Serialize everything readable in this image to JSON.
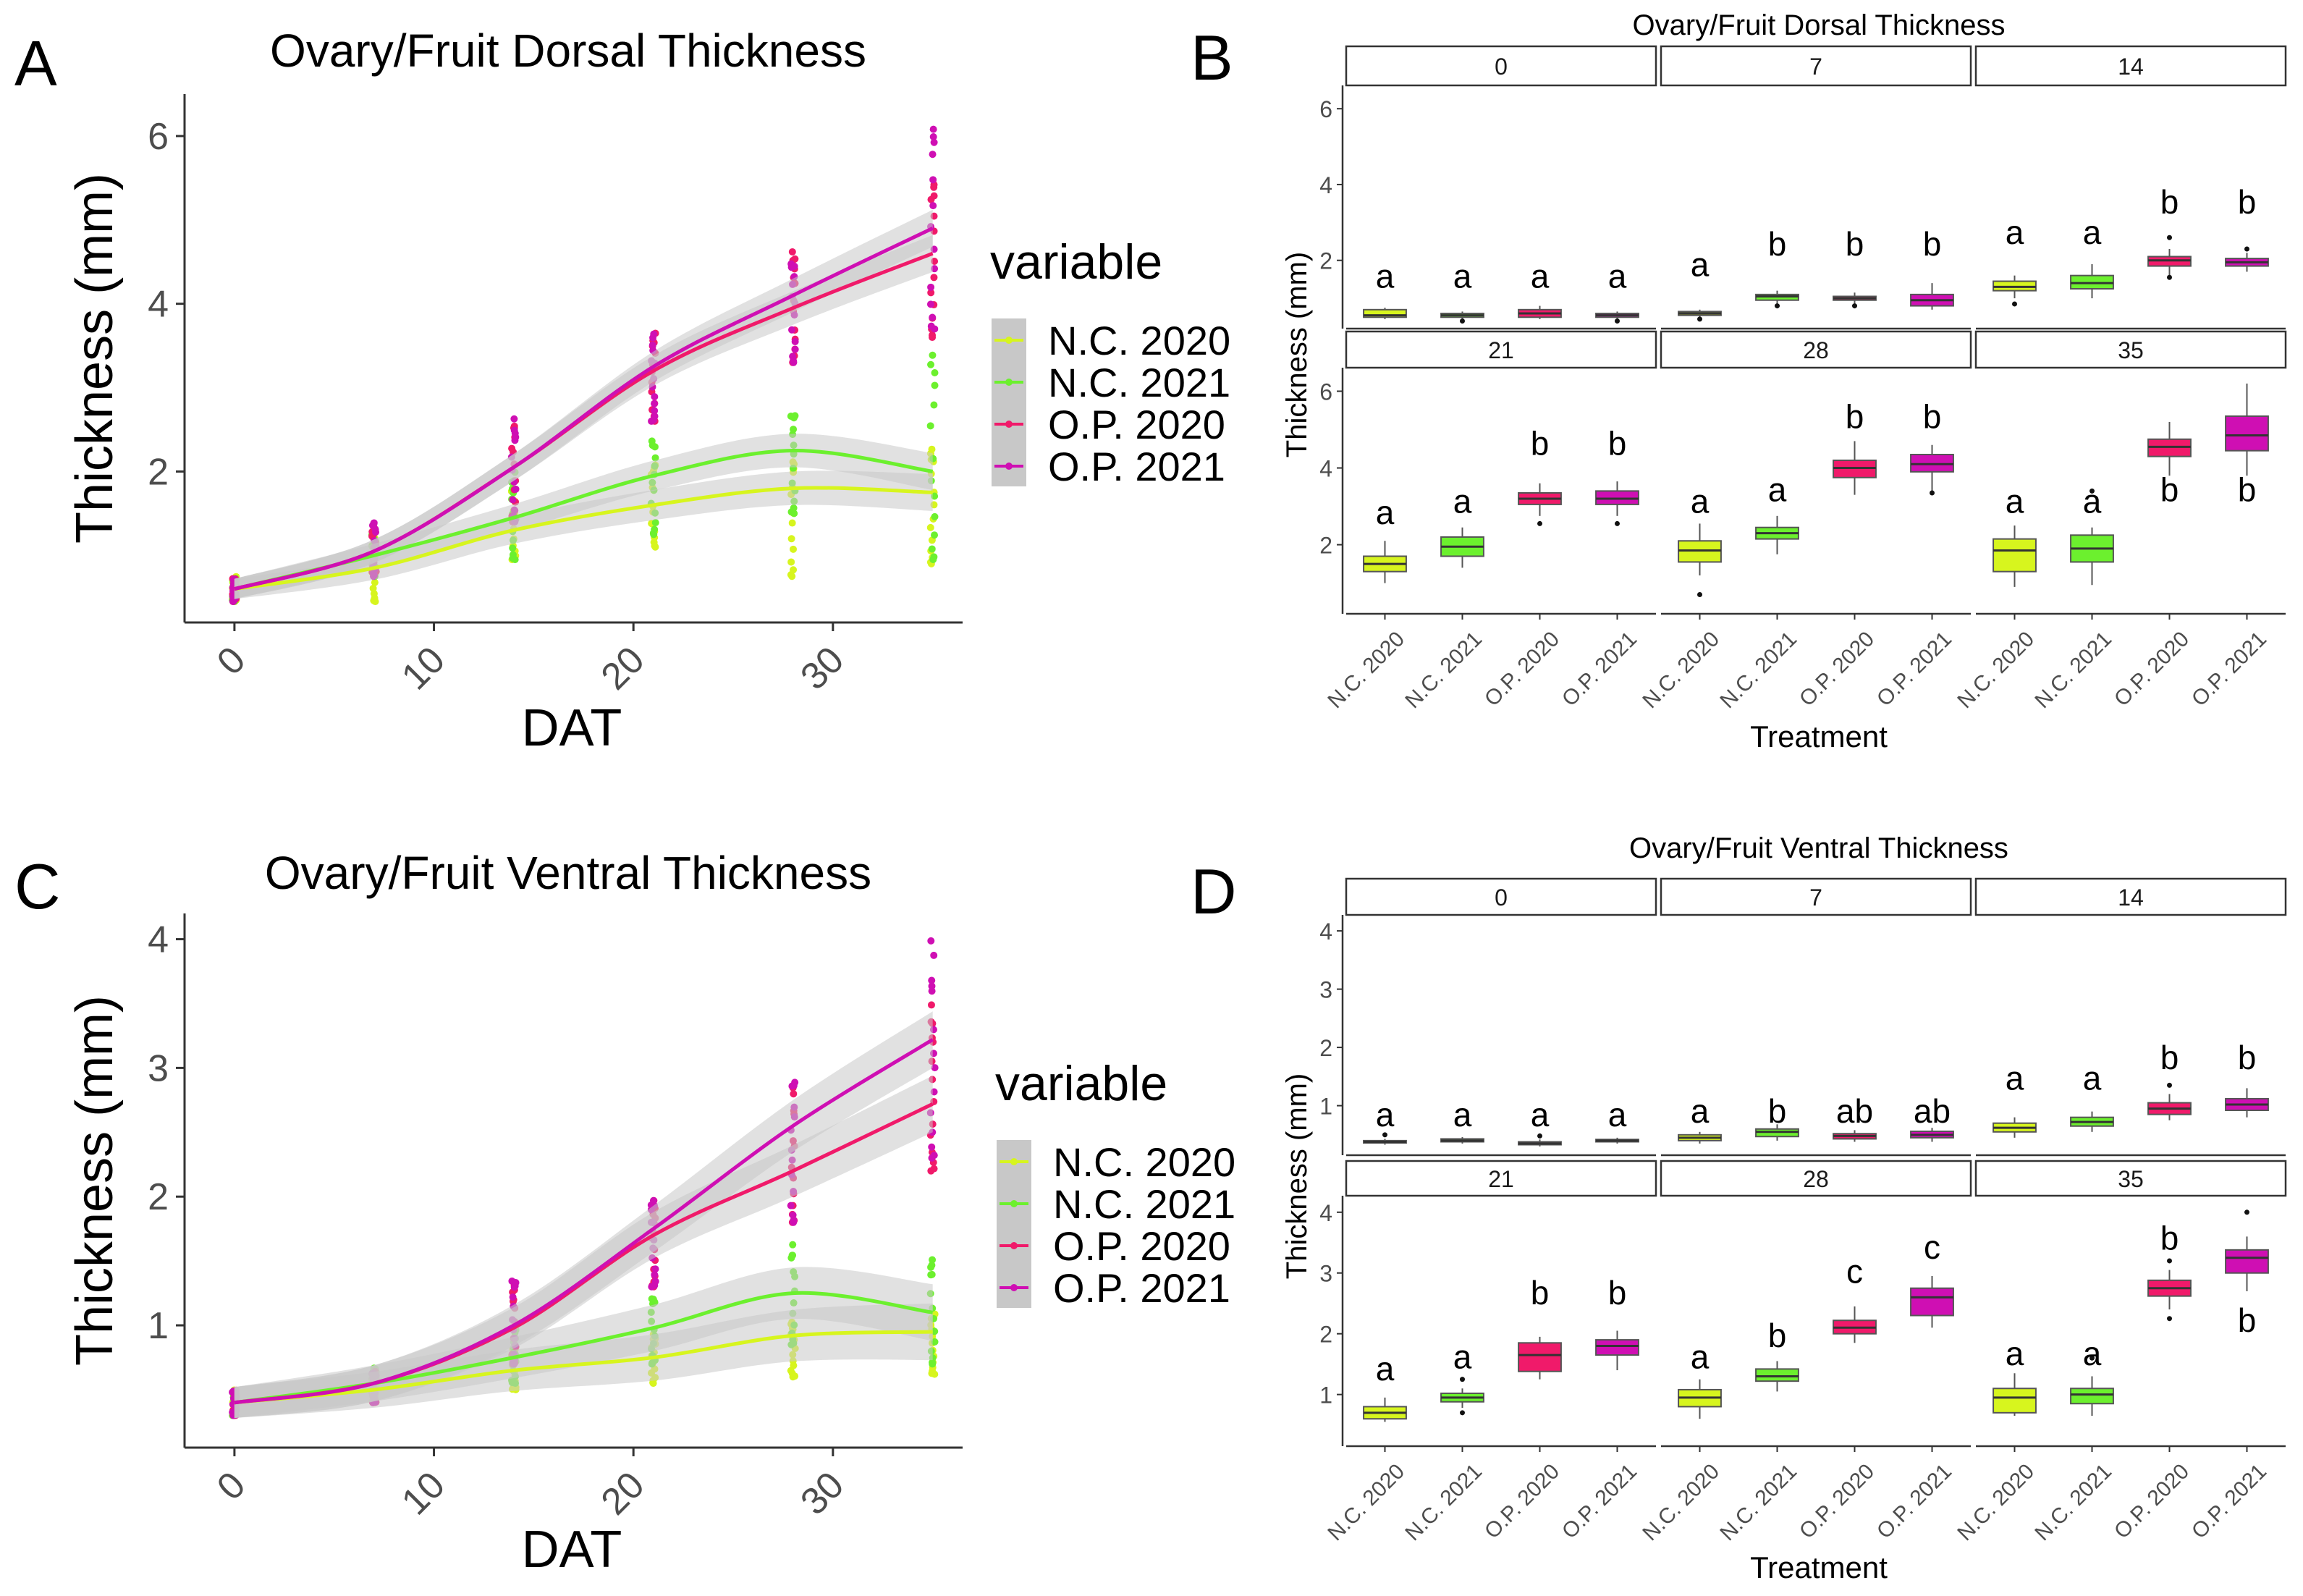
{
  "colors": {
    "N.C. 2020": "#d7f51e",
    "N.C. 2021": "#6cf02e",
    "O.P. 2020": "#f01a6a",
    "O.P. 2021": "#cf0fb3",
    "band": "#c8c8c8",
    "box_outline": "#555555"
  },
  "panel_letters": [
    "A",
    "B",
    "C",
    "D"
  ],
  "chart_data": [
    {
      "panel": "A",
      "type": "line",
      "title": "Ovary/Fruit Dorsal Thickness",
      "xlabel": "DAT",
      "ylabel": "Thickness (mm)",
      "xlim": [
        -2.5,
        36.5
      ],
      "ylim": [
        0.2,
        6.5
      ],
      "xticks": [
        0,
        10,
        20,
        30
      ],
      "yticks": [
        2,
        4,
        6
      ],
      "legend_title": "variable",
      "legend_position": "right",
      "x": [
        0,
        7,
        14,
        21,
        28,
        35
      ],
      "series": [
        {
          "name": "N.C. 2020",
          "values": [
            0.6,
            0.85,
            1.3,
            1.6,
            1.8,
            1.75
          ]
        },
        {
          "name": "N.C. 2021",
          "values": [
            0.6,
            1.0,
            1.45,
            1.95,
            2.25,
            2.0
          ]
        },
        {
          "name": "O.P. 2020",
          "values": [
            0.6,
            1.05,
            2.05,
            3.2,
            3.95,
            4.6
          ]
        },
        {
          "name": "O.P. 2021",
          "values": [
            0.6,
            1.05,
            2.05,
            3.25,
            4.1,
            4.9
          ]
        }
      ],
      "points": [
        {
          "name": "N.C. 2020",
          "min": [
            0.45,
            0.45,
            0.95,
            1.1,
            0.75,
            0.9
          ],
          "max": [
            0.75,
            1.25,
            1.8,
            2.1,
            2.3,
            2.3
          ]
        },
        {
          "name": "N.C. 2021",
          "min": [
            0.45,
            0.75,
            0.95,
            1.25,
            1.5,
            0.95
          ],
          "max": [
            0.75,
            1.25,
            2.05,
            2.45,
            2.8,
            3.4
          ]
        },
        {
          "name": "O.P. 2020",
          "min": [
            0.45,
            0.8,
            1.4,
            2.6,
            3.3,
            3.6
          ],
          "max": [
            0.75,
            1.35,
            2.65,
            3.7,
            4.7,
            5.5
          ]
        },
        {
          "name": "O.P. 2021",
          "min": [
            0.45,
            0.75,
            1.4,
            2.6,
            3.3,
            3.7
          ],
          "max": [
            0.75,
            1.45,
            2.65,
            3.65,
            4.6,
            6.2
          ]
        }
      ]
    },
    {
      "panel": "B",
      "type": "box",
      "title": "Ovary/Fruit Dorsal Thickness",
      "xlabel": "Treatment",
      "ylabel": "Thickness (mm)",
      "ylim": [
        0.2,
        6.5
      ],
      "yticks": [
        2,
        4,
        6
      ],
      "categories": [
        "N.C. 2020",
        "N.C. 2021",
        "O.P. 2020",
        "O.P. 2021"
      ],
      "facets": [
        {
          "label": "0",
          "boxes": [
            {
              "min": 0.45,
              "q1": 0.5,
              "median": 0.55,
              "q3": 0.7,
              "max": 0.75,
              "out": [],
              "letter": "a",
              "letter_y": 1.55
            },
            {
              "min": 0.45,
              "q1": 0.5,
              "median": 0.55,
              "q3": 0.6,
              "max": 0.65,
              "out": [
                0.4
              ],
              "letter": "a",
              "letter_y": 1.55
            },
            {
              "min": 0.45,
              "q1": 0.5,
              "median": 0.6,
              "q3": 0.7,
              "max": 0.8,
              "out": [],
              "letter": "a",
              "letter_y": 1.55
            },
            {
              "min": 0.45,
              "q1": 0.5,
              "median": 0.55,
              "q3": 0.6,
              "max": 0.65,
              "out": [
                0.4
              ],
              "letter": "a",
              "letter_y": 1.55
            }
          ]
        },
        {
          "label": "7",
          "boxes": [
            {
              "min": 0.45,
              "q1": 0.55,
              "median": 0.6,
              "q3": 0.65,
              "max": 0.7,
              "out": [
                0.45
              ],
              "letter": "a",
              "letter_y": 1.85
            },
            {
              "min": 0.85,
              "q1": 0.95,
              "median": 1.05,
              "q3": 1.1,
              "max": 1.2,
              "out": [
                0.8
              ],
              "letter": "b",
              "letter_y": 2.4
            },
            {
              "min": 0.85,
              "q1": 0.95,
              "median": 1.0,
              "q3": 1.05,
              "max": 1.15,
              "out": [
                0.8
              ],
              "letter": "b",
              "letter_y": 2.4
            },
            {
              "min": 0.7,
              "q1": 0.8,
              "median": 0.95,
              "q3": 1.1,
              "max": 1.4,
              "out": [],
              "letter": "b",
              "letter_y": 2.4
            }
          ]
        },
        {
          "label": "14",
          "boxes": [
            {
              "min": 1.0,
              "q1": 1.2,
              "median": 1.3,
              "q3": 1.45,
              "max": 1.6,
              "out": [
                0.85
              ],
              "letter": "a",
              "letter_y": 2.7
            },
            {
              "min": 1.0,
              "q1": 1.25,
              "median": 1.4,
              "q3": 1.6,
              "max": 1.9,
              "out": [],
              "letter": "a",
              "letter_y": 2.7
            },
            {
              "min": 1.6,
              "q1": 1.85,
              "median": 2.0,
              "q3": 2.1,
              "max": 2.3,
              "out": [
                1.55,
                2.6
              ],
              "letter": "b",
              "letter_y": 3.5
            },
            {
              "min": 1.7,
              "q1": 1.85,
              "median": 1.95,
              "q3": 2.05,
              "max": 2.2,
              "out": [
                2.3
              ],
              "letter": "b",
              "letter_y": 3.5
            }
          ]
        },
        {
          "label": "21",
          "boxes": [
            {
              "min": 1.0,
              "q1": 1.3,
              "median": 1.5,
              "q3": 1.7,
              "max": 2.1,
              "out": [],
              "letter": "a",
              "letter_y": 2.8
            },
            {
              "min": 1.4,
              "q1": 1.7,
              "median": 1.95,
              "q3": 2.2,
              "max": 2.45,
              "out": [],
              "letter": "a",
              "letter_y": 3.1
            },
            {
              "min": 2.75,
              "q1": 3.05,
              "median": 3.2,
              "q3": 3.35,
              "max": 3.6,
              "out": [
                2.55
              ],
              "letter": "b",
              "letter_y": 4.6
            },
            {
              "min": 2.75,
              "q1": 3.05,
              "median": 3.2,
              "q3": 3.4,
              "max": 3.65,
              "out": [
                2.55
              ],
              "letter": "b",
              "letter_y": 4.6
            }
          ]
        },
        {
          "label": "28",
          "boxes": [
            {
              "min": 1.2,
              "q1": 1.55,
              "median": 1.85,
              "q3": 2.1,
              "max": 2.55,
              "out": [
                0.7
              ],
              "letter": "a",
              "letter_y": 3.1
            },
            {
              "min": 1.75,
              "q1": 2.15,
              "median": 2.3,
              "q3": 2.45,
              "max": 2.75,
              "out": [],
              "letter": "a",
              "letter_y": 3.4
            },
            {
              "min": 3.3,
              "q1": 3.75,
              "median": 4.0,
              "q3": 4.2,
              "max": 4.7,
              "out": [],
              "letter": "b",
              "letter_y": 5.3
            },
            {
              "min": 3.3,
              "q1": 3.9,
              "median": 4.1,
              "q3": 4.35,
              "max": 4.6,
              "out": [
                3.35
              ],
              "letter": "b",
              "letter_y": 5.3
            }
          ]
        },
        {
          "label": "35",
          "boxes": [
            {
              "min": 0.9,
              "q1": 1.3,
              "median": 1.85,
              "q3": 2.15,
              "max": 2.5,
              "out": [],
              "letter": "a",
              "letter_y": 3.1
            },
            {
              "min": 0.95,
              "q1": 1.55,
              "median": 1.9,
              "q3": 2.25,
              "max": 2.45,
              "out": [
                3.4
              ],
              "letter": "a",
              "letter_y": 3.1
            },
            {
              "min": 3.8,
              "q1": 4.3,
              "median": 4.55,
              "q3": 4.75,
              "max": 5.2,
              "out": [],
              "letter": "b",
              "letter_y": 3.4
            },
            {
              "min": 3.8,
              "q1": 4.45,
              "median": 4.85,
              "q3": 5.35,
              "max": 6.2,
              "out": [],
              "letter": "b",
              "letter_y": 3.4
            }
          ]
        }
      ]
    },
    {
      "panel": "C",
      "type": "line",
      "title": "Ovary/Fruit Ventral Thickness",
      "xlabel": "DAT",
      "ylabel": "Thickness (mm)",
      "xlim": [
        -2.5,
        36.5
      ],
      "ylim": [
        0.05,
        4.2
      ],
      "xticks": [
        0,
        10,
        20,
        30
      ],
      "yticks": [
        1,
        2,
        3,
        4
      ],
      "legend_title": "variable",
      "legend_position": "right",
      "x": [
        0,
        7,
        14,
        21,
        28,
        35
      ],
      "series": [
        {
          "name": "N.C. 2020",
          "values": [
            0.4,
            0.5,
            0.65,
            0.75,
            0.92,
            0.95
          ]
        },
        {
          "name": "N.C. 2021",
          "values": [
            0.4,
            0.55,
            0.75,
            0.98,
            1.25,
            1.1
          ]
        },
        {
          "name": "O.P. 2020",
          "values": [
            0.4,
            0.55,
            0.98,
            1.7,
            2.2,
            2.72
          ]
        },
        {
          "name": "O.P. 2021",
          "values": [
            0.4,
            0.55,
            1.0,
            1.75,
            2.55,
            3.22
          ]
        }
      ],
      "points": [
        {
          "name": "N.C. 2020",
          "min": [
            0.3,
            0.4,
            0.5,
            0.55,
            0.6,
            0.62
          ],
          "max": [
            0.5,
            0.6,
            0.85,
            0.95,
            1.05,
            1.1
          ]
        },
        {
          "name": "N.C. 2021",
          "min": [
            0.3,
            0.45,
            0.55,
            0.7,
            0.85,
            0.7
          ],
          "max": [
            0.5,
            0.7,
            1.0,
            1.25,
            1.65,
            1.6
          ]
        },
        {
          "name": "O.P. 2020",
          "min": [
            0.3,
            0.4,
            0.7,
            1.3,
            1.8,
            2.2
          ],
          "max": [
            0.5,
            0.65,
            1.35,
            2.0,
            2.9,
            3.5
          ]
        },
        {
          "name": "O.P. 2021",
          "min": [
            0.3,
            0.4,
            0.7,
            1.3,
            1.8,
            2.3
          ],
          "max": [
            0.5,
            0.65,
            1.4,
            2.05,
            2.95,
            4.0
          ]
        }
      ]
    },
    {
      "panel": "D",
      "type": "box",
      "title": "Ovary/Fruit Ventral Thickness",
      "xlabel": "Treatment",
      "ylabel": "Thickness (mm)",
      "ylim": [
        0.15,
        4.2
      ],
      "yticks": [
        1,
        2,
        3,
        4
      ],
      "categories": [
        "N.C. 2020",
        "N.C. 2021",
        "O.P. 2020",
        "O.P. 2021"
      ],
      "facets": [
        {
          "label": "0",
          "boxes": [
            {
              "min": 0.33,
              "q1": 0.36,
              "median": 0.38,
              "q3": 0.4,
              "max": 0.43,
              "out": [
                0.5
              ],
              "letter": "a",
              "letter_y": 0.82
            },
            {
              "min": 0.35,
              "q1": 0.38,
              "median": 0.4,
              "q3": 0.43,
              "max": 0.46,
              "out": [],
              "letter": "a",
              "letter_y": 0.82
            },
            {
              "min": 0.3,
              "q1": 0.33,
              "median": 0.35,
              "q3": 0.38,
              "max": 0.42,
              "out": [
                0.48
              ],
              "letter": "a",
              "letter_y": 0.82
            },
            {
              "min": 0.35,
              "q1": 0.38,
              "median": 0.4,
              "q3": 0.42,
              "max": 0.45,
              "out": [],
              "letter": "a",
              "letter_y": 0.82
            }
          ]
        },
        {
          "label": "7",
          "boxes": [
            {
              "min": 0.35,
              "q1": 0.4,
              "median": 0.45,
              "q3": 0.5,
              "max": 0.55,
              "out": [],
              "letter": "a",
              "letter_y": 0.88
            },
            {
              "min": 0.4,
              "q1": 0.47,
              "median": 0.55,
              "q3": 0.6,
              "max": 0.68,
              "out": [],
              "letter": "b",
              "letter_y": 0.88
            },
            {
              "min": 0.38,
              "q1": 0.43,
              "median": 0.48,
              "q3": 0.52,
              "max": 0.58,
              "out": [],
              "letter": "ab",
              "letter_y": 0.88
            },
            {
              "min": 0.38,
              "q1": 0.45,
              "median": 0.5,
              "q3": 0.56,
              "max": 0.62,
              "out": [],
              "letter": "ab",
              "letter_y": 0.88
            }
          ]
        },
        {
          "label": "14",
          "boxes": [
            {
              "min": 0.45,
              "q1": 0.55,
              "median": 0.62,
              "q3": 0.7,
              "max": 0.8,
              "out": [],
              "letter": "a",
              "letter_y": 1.45
            },
            {
              "min": 0.55,
              "q1": 0.65,
              "median": 0.72,
              "q3": 0.8,
              "max": 0.9,
              "out": [],
              "letter": "a",
              "letter_y": 1.45
            },
            {
              "min": 0.75,
              "q1": 0.85,
              "median": 0.95,
              "q3": 1.05,
              "max": 1.2,
              "out": [
                1.35
              ],
              "letter": "b",
              "letter_y": 1.8
            },
            {
              "min": 0.8,
              "q1": 0.92,
              "median": 1.02,
              "q3": 1.12,
              "max": 1.3,
              "out": [],
              "letter": "b",
              "letter_y": 1.8
            }
          ]
        },
        {
          "label": "21",
          "boxes": [
            {
              "min": 0.55,
              "q1": 0.6,
              "median": 0.7,
              "q3": 0.8,
              "max": 0.95,
              "out": [],
              "letter": "a",
              "letter_y": 1.4
            },
            {
              "min": 0.78,
              "q1": 0.88,
              "median": 0.95,
              "q3": 1.02,
              "max": 1.1,
              "out": [
                0.7,
                1.25
              ],
              "letter": "a",
              "letter_y": 1.6
            },
            {
              "min": 1.25,
              "q1": 1.38,
              "median": 1.65,
              "q3": 1.85,
              "max": 1.95,
              "out": [],
              "letter": "b",
              "letter_y": 2.65
            },
            {
              "min": 1.4,
              "q1": 1.65,
              "median": 1.8,
              "q3": 1.9,
              "max": 2.05,
              "out": [],
              "letter": "b",
              "letter_y": 2.65
            }
          ]
        },
        {
          "label": "28",
          "boxes": [
            {
              "min": 0.6,
              "q1": 0.8,
              "median": 0.95,
              "q3": 1.08,
              "max": 1.25,
              "out": [],
              "letter": "a",
              "letter_y": 1.6
            },
            {
              "min": 1.05,
              "q1": 1.22,
              "median": 1.3,
              "q3": 1.42,
              "max": 1.55,
              "out": [],
              "letter": "b",
              "letter_y": 1.95
            },
            {
              "min": 1.85,
              "q1": 2.0,
              "median": 2.1,
              "q3": 2.22,
              "max": 2.45,
              "out": [],
              "letter": "c",
              "letter_y": 3.0
            },
            {
              "min": 2.1,
              "q1": 2.3,
              "median": 2.6,
              "q3": 2.75,
              "max": 2.95,
              "out": [],
              "letter": "c",
              "letter_y": 3.4
            }
          ]
        },
        {
          "label": "35",
          "boxes": [
            {
              "min": 0.65,
              "q1": 0.7,
              "median": 0.95,
              "q3": 1.1,
              "max": 1.35,
              "out": [],
              "letter": "a",
              "letter_y": 1.65
            },
            {
              "min": 0.65,
              "q1": 0.85,
              "median": 1.0,
              "q3": 1.1,
              "max": 1.3,
              "out": [
                1.6
              ],
              "letter": "a",
              "letter_y": 1.65
            },
            {
              "min": 2.4,
              "q1": 2.62,
              "median": 2.75,
              "q3": 2.88,
              "max": 3.05,
              "out": [
                2.25,
                3.2
              ],
              "letter": "b",
              "letter_y": 3.55
            },
            {
              "min": 2.7,
              "q1": 3.0,
              "median": 3.25,
              "q3": 3.38,
              "max": 3.6,
              "out": [
                4.0
              ],
              "letter": "b",
              "letter_y": 2.2
            }
          ]
        }
      ]
    }
  ]
}
